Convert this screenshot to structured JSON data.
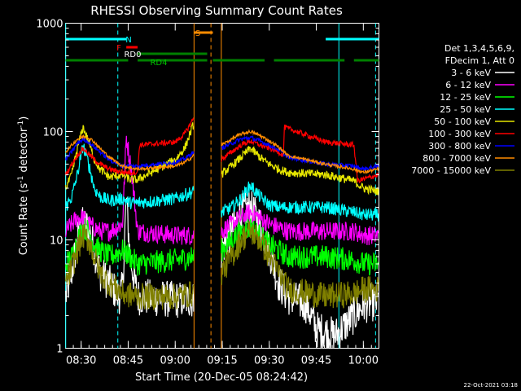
{
  "chart_data": {
    "type": "line",
    "title": "RHESSI Observing Summary Count Rates",
    "xlabel": "Start Time (20-Dec-05 08:24:42)",
    "ylabel": "Count Rate (s",
    "ylabel_sup": "-1",
    "ylabel_tail": " detector",
    "ylabel_sup2": "-1",
    "ylabel_end": ")",
    "y_scale": "log",
    "ylim": [
      1,
      1000
    ],
    "xlim_minutes": [
      8.417,
      10.083
    ],
    "x_ticks": [
      {
        "value": 8.5,
        "label": "08:30"
      },
      {
        "value": 8.75,
        "label": "08:45"
      },
      {
        "value": 9.0,
        "label": "09:00"
      },
      {
        "value": 9.25,
        "label": "09:15"
      },
      {
        "value": 9.5,
        "label": "09:30"
      },
      {
        "value": 9.75,
        "label": "09:45"
      },
      {
        "value": 10.0,
        "label": "10:00"
      }
    ],
    "y_ticks": [
      {
        "value": 1,
        "label": "1"
      },
      {
        "value": 10,
        "label": "10"
      },
      {
        "value": 100,
        "label": "100"
      },
      {
        "value": 1000,
        "label": "1000"
      }
    ],
    "legend": {
      "placement": "right",
      "header1": "Det 1,3,4,5,6,9,",
      "header2": "FDecim 1, Att 0",
      "entries": [
        {
          "label": "3 - 6 keV",
          "color": "#ffffff"
        },
        {
          "label": "6 - 12 keV",
          "color": "#ff00ff"
        },
        {
          "label": "12 - 25 keV",
          "color": "#00ff00"
        },
        {
          "label": "25 - 50 keV",
          "color": "#00ffff"
        },
        {
          "label": "50 - 100 keV",
          "color": "#e6e600"
        },
        {
          "label": "100 - 300 keV",
          "color": "#ff0000"
        },
        {
          "label": "300 - 800 keV",
          "color": "#0000ff"
        },
        {
          "label": "800 - 7000 keV",
          "color": "#ff8c00"
        },
        {
          "label": "7000 - 15000 keV",
          "color": "#808000"
        }
      ]
    },
    "flags": [
      {
        "label": "N",
        "color": "#00ffff",
        "segments": [
          [
            8.417,
            8.74
          ],
          [
            9.8,
            10.083
          ]
        ]
      },
      {
        "label": "F",
        "color": "#ff0000",
        "segments": [
          [
            8.74,
            8.8
          ]
        ]
      },
      {
        "label": "RD0",
        "color": "#ffffff",
        "segments": []
      },
      {
        "label": "S",
        "color": "#ff8c00",
        "segments": [
          [
            9.1,
            9.2
          ]
        ]
      },
      {
        "label": "RD4",
        "color": "#008000",
        "segments": [
          [
            8.417,
            8.75
          ],
          [
            8.8,
            9.17
          ],
          [
            9.2,
            9.475
          ],
          [
            9.525,
            9.9
          ],
          [
            9.95,
            10.083
          ]
        ],
        "secondary": [
          [
            8.8,
            9.17
          ]
        ]
      }
    ],
    "vertical_lines": [
      {
        "x": 8.418,
        "color": "#00ffff",
        "style": "solid"
      },
      {
        "x": 8.695,
        "color": "#00ffff",
        "style": "dashed"
      },
      {
        "x": 9.87,
        "color": "#00ffff",
        "style": "solid"
      },
      {
        "x": 10.065,
        "color": "#00ffff",
        "style": "dashed"
      },
      {
        "x": 9.1,
        "color": "#ff8c00",
        "style": "solid"
      },
      {
        "x": 9.19,
        "color": "#ff8c00",
        "style": "dashed"
      },
      {
        "x": 9.245,
        "color": "#ff8c00",
        "style": "solid"
      }
    ],
    "gap": [
      9.1,
      9.245
    ],
    "series": [
      {
        "name": "3 - 6 keV",
        "color": "#ffffff",
        "noise": 0.35,
        "points": [
          [
            8.418,
            3
          ],
          [
            8.45,
            5
          ],
          [
            8.48,
            10
          ],
          [
            8.51,
            14
          ],
          [
            8.54,
            13
          ],
          [
            8.57,
            8
          ],
          [
            8.6,
            5
          ],
          [
            8.65,
            4
          ],
          [
            8.7,
            3
          ],
          [
            8.72,
            3.5
          ],
          [
            8.74,
            25
          ],
          [
            8.76,
            7
          ],
          [
            8.8,
            3
          ],
          [
            9.0,
            2.8
          ],
          [
            9.1,
            2.8
          ],
          [
            9.245,
            8
          ],
          [
            9.3,
            12
          ],
          [
            9.35,
            18
          ],
          [
            9.4,
            20
          ],
          [
            9.45,
            14
          ],
          [
            9.5,
            8
          ],
          [
            9.55,
            4
          ],
          [
            9.6,
            3
          ],
          [
            9.7,
            2.5
          ],
          [
            9.75,
            1.5
          ],
          [
            9.85,
            1.3
          ],
          [
            9.95,
            2
          ],
          [
            10.0,
            2.5
          ],
          [
            10.08,
            2.7
          ]
        ]
      },
      {
        "name": "6 - 12 keV",
        "color": "#ff00ff",
        "noise": 0.18,
        "points": [
          [
            8.418,
            12
          ],
          [
            8.45,
            14
          ],
          [
            8.48,
            16
          ],
          [
            8.51,
            16
          ],
          [
            8.54,
            14
          ],
          [
            8.57,
            13
          ],
          [
            8.6,
            12
          ],
          [
            8.65,
            12
          ],
          [
            8.72,
            14
          ],
          [
            8.74,
            90
          ],
          [
            8.77,
            40
          ],
          [
            8.8,
            12
          ],
          [
            9.0,
            11
          ],
          [
            9.1,
            11
          ],
          [
            9.245,
            12
          ],
          [
            9.3,
            14
          ],
          [
            9.35,
            16
          ],
          [
            9.4,
            18
          ],
          [
            9.45,
            16
          ],
          [
            9.5,
            14
          ],
          [
            9.55,
            13
          ],
          [
            9.6,
            12
          ],
          [
            9.8,
            12
          ],
          [
            9.95,
            12
          ],
          [
            10.0,
            11
          ],
          [
            10.08,
            11
          ]
        ]
      },
      {
        "name": "12 - 25 keV",
        "color": "#00ff00",
        "noise": 0.22,
        "points": [
          [
            8.418,
            6
          ],
          [
            8.45,
            7
          ],
          [
            8.48,
            10
          ],
          [
            8.51,
            13
          ],
          [
            8.54,
            12
          ],
          [
            8.57,
            9
          ],
          [
            8.6,
            8
          ],
          [
            8.65,
            7
          ],
          [
            8.72,
            8
          ],
          [
            8.76,
            7
          ],
          [
            8.8,
            6
          ],
          [
            9.0,
            6.5
          ],
          [
            9.1,
            7
          ],
          [
            9.245,
            8
          ],
          [
            9.3,
            10
          ],
          [
            9.35,
            12
          ],
          [
            9.4,
            13
          ],
          [
            9.45,
            11
          ],
          [
            9.5,
            9
          ],
          [
            9.55,
            8
          ],
          [
            9.6,
            7
          ],
          [
            9.8,
            7
          ],
          [
            9.95,
            6.5
          ],
          [
            10.0,
            6
          ],
          [
            10.08,
            6
          ]
        ]
      },
      {
        "name": "25 - 50 keV",
        "color": "#00ffff",
        "noise": 0.12,
        "points": [
          [
            8.418,
            20
          ],
          [
            8.45,
            25
          ],
          [
            8.48,
            40
          ],
          [
            8.51,
            75
          ],
          [
            8.54,
            50
          ],
          [
            8.57,
            30
          ],
          [
            8.6,
            25
          ],
          [
            8.65,
            23
          ],
          [
            8.72,
            24
          ],
          [
            8.76,
            22
          ],
          [
            8.8,
            22
          ],
          [
            9.0,
            24
          ],
          [
            9.1,
            28
          ],
          [
            9.245,
            18
          ],
          [
            9.3,
            20
          ],
          [
            9.35,
            24
          ],
          [
            9.4,
            32
          ],
          [
            9.45,
            25
          ],
          [
            9.5,
            21
          ],
          [
            9.55,
            20
          ],
          [
            9.6,
            20
          ],
          [
            9.8,
            20
          ],
          [
            9.95,
            18
          ],
          [
            10.0,
            17
          ],
          [
            10.08,
            17
          ]
        ]
      },
      {
        "name": "50 - 100 keV",
        "color": "#e6e600",
        "noise": 0.08,
        "points": [
          [
            8.418,
            30
          ],
          [
            8.45,
            40
          ],
          [
            8.48,
            70
          ],
          [
            8.51,
            110
          ],
          [
            8.54,
            80
          ],
          [
            8.57,
            55
          ],
          [
            8.6,
            45
          ],
          [
            8.65,
            38
          ],
          [
            8.72,
            40
          ],
          [
            8.76,
            36
          ],
          [
            8.8,
            36
          ],
          [
            9.0,
            55
          ],
          [
            9.05,
            70
          ],
          [
            9.1,
            120
          ],
          [
            9.245,
            40
          ],
          [
            9.3,
            48
          ],
          [
            9.35,
            58
          ],
          [
            9.4,
            70
          ],
          [
            9.45,
            58
          ],
          [
            9.5,
            50
          ],
          [
            9.55,
            45
          ],
          [
            9.6,
            42
          ],
          [
            9.8,
            40
          ],
          [
            9.95,
            35
          ],
          [
            10.0,
            30
          ],
          [
            10.08,
            28
          ]
        ]
      },
      {
        "name": "100 - 300 keV",
        "color": "#ff0000",
        "noise": 0.05,
        "points": [
          [
            8.418,
            40
          ],
          [
            8.45,
            50
          ],
          [
            8.48,
            60
          ],
          [
            8.51,
            70
          ],
          [
            8.54,
            62
          ],
          [
            8.57,
            55
          ],
          [
            8.6,
            50
          ],
          [
            8.65,
            45
          ],
          [
            8.72,
            42
          ],
          [
            8.8,
            42
          ],
          [
            8.81,
            75
          ],
          [
            9.0,
            80
          ],
          [
            9.05,
            95
          ],
          [
            9.1,
            135
          ],
          [
            9.245,
            55
          ],
          [
            9.3,
            65
          ],
          [
            9.35,
            75
          ],
          [
            9.4,
            82
          ],
          [
            9.45,
            75
          ],
          [
            9.5,
            70
          ],
          [
            9.55,
            65
          ],
          [
            9.575,
            60
          ],
          [
            9.58,
            110
          ],
          [
            9.8,
            80
          ],
          [
            9.95,
            75
          ],
          [
            9.97,
            35
          ],
          [
            10.08,
            40
          ]
        ]
      },
      {
        "name": "300 - 800 keV",
        "color": "#0000ff",
        "noise": 0.04,
        "points": [
          [
            8.418,
            55
          ],
          [
            8.45,
            65
          ],
          [
            8.48,
            78
          ],
          [
            8.51,
            85
          ],
          [
            8.54,
            80
          ],
          [
            8.57,
            72
          ],
          [
            8.6,
            65
          ],
          [
            8.65,
            55
          ],
          [
            8.72,
            48
          ],
          [
            8.8,
            48
          ],
          [
            9.0,
            52
          ],
          [
            9.05,
            56
          ],
          [
            9.1,
            65
          ],
          [
            9.245,
            70
          ],
          [
            9.3,
            78
          ],
          [
            9.35,
            85
          ],
          [
            9.4,
            88
          ],
          [
            9.45,
            82
          ],
          [
            9.5,
            75
          ],
          [
            9.55,
            68
          ],
          [
            9.6,
            58
          ],
          [
            9.8,
            50
          ],
          [
            9.95,
            48
          ],
          [
            10.0,
            45
          ],
          [
            10.08,
            48
          ]
        ]
      },
      {
        "name": "800 - 7000 keV",
        "color": "#ff8c00",
        "noise": 0.03,
        "points": [
          [
            8.418,
            65
          ],
          [
            8.45,
            75
          ],
          [
            8.48,
            85
          ],
          [
            8.51,
            90
          ],
          [
            8.54,
            88
          ],
          [
            8.57,
            80
          ],
          [
            8.6,
            70
          ],
          [
            8.65,
            58
          ],
          [
            8.72,
            48
          ],
          [
            8.8,
            45
          ],
          [
            9.0,
            48
          ],
          [
            9.05,
            52
          ],
          [
            9.1,
            60
          ],
          [
            9.245,
            75
          ],
          [
            9.3,
            85
          ],
          [
            9.35,
            95
          ],
          [
            9.4,
            100
          ],
          [
            9.45,
            92
          ],
          [
            9.5,
            82
          ],
          [
            9.55,
            72
          ],
          [
            9.6,
            60
          ],
          [
            9.8,
            50
          ],
          [
            9.95,
            45
          ],
          [
            10.0,
            42
          ],
          [
            10.08,
            45
          ]
        ]
      },
      {
        "name": "7000 - 15000 keV",
        "color": "#808000",
        "noise": 0.25,
        "points": [
          [
            8.418,
            4
          ],
          [
            8.45,
            5.5
          ],
          [
            8.48,
            8
          ],
          [
            8.51,
            11
          ],
          [
            8.54,
            10
          ],
          [
            8.57,
            7
          ],
          [
            8.6,
            5
          ],
          [
            8.65,
            4
          ],
          [
            8.72,
            3.2
          ],
          [
            8.8,
            3
          ],
          [
            9.0,
            3
          ],
          [
            9.1,
            3.2
          ],
          [
            9.245,
            5
          ],
          [
            9.3,
            7
          ],
          [
            9.35,
            10
          ],
          [
            9.4,
            12
          ],
          [
            9.45,
            10
          ],
          [
            9.5,
            7
          ],
          [
            9.55,
            5
          ],
          [
            9.6,
            3.5
          ],
          [
            9.8,
            3
          ],
          [
            9.95,
            3.2
          ],
          [
            10.0,
            3.5
          ],
          [
            10.08,
            3.5
          ]
        ]
      }
    ]
  },
  "footer_timestamp": "22-Oct-2021 03:18"
}
